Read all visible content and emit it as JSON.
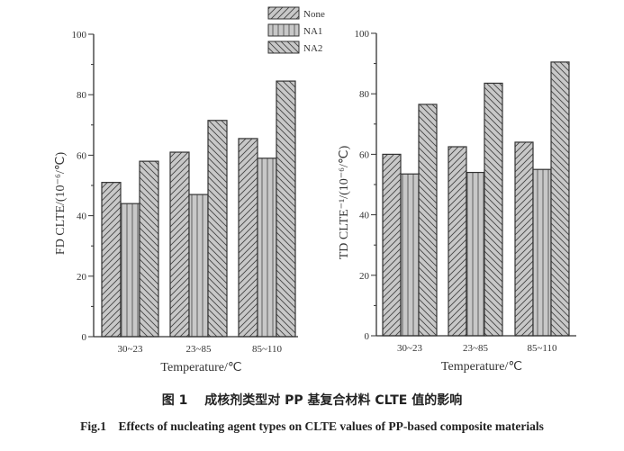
{
  "legend": {
    "items": [
      {
        "label": "None",
        "pattern": "diag-right"
      },
      {
        "label": "NA1",
        "pattern": "vertical"
      },
      {
        "label": "NA2",
        "pattern": "diag-left"
      }
    ]
  },
  "left_chart": {
    "ylabel": "FD CLTE/(10⁻⁶/℃)",
    "xlabel": "Temperature/℃",
    "yticks": [
      "0",
      "20",
      "40",
      "60",
      "80",
      "100"
    ]
  },
  "right_chart": {
    "ylabel": "TD CLTE⁻¹/(10⁻⁶/℃)",
    "xlabel": "Temperature/℃",
    "yticks": [
      "0",
      "20",
      "40",
      "60",
      "80",
      "100"
    ]
  },
  "caption": {
    "chinese": "图 1　 成核剂类型对 PP 基复合材料 CLTE 值的影响",
    "english": "Fig.1　Effects of nucleating agent types on CLTE values of PP-based composite materials"
  },
  "colors": {
    "bar_fill": "#c8c8c8",
    "stroke": "#333333"
  },
  "chart_data": [
    {
      "type": "bar",
      "title": "",
      "xlabel": "Temperature/℃",
      "ylabel": "FD CLTE/(10⁻⁶/℃)",
      "ylim": [
        0,
        100
      ],
      "categories": [
        "30~23",
        "23~85",
        "85~110"
      ],
      "series": [
        {
          "name": "None",
          "values": [
            51,
            61,
            65.5
          ]
        },
        {
          "name": "NA1",
          "values": [
            44,
            47,
            59
          ]
        },
        {
          "name": "NA2",
          "values": [
            58,
            71.5,
            84.5
          ]
        }
      ],
      "legend_position": "top-center",
      "grid": false
    },
    {
      "type": "bar",
      "title": "",
      "xlabel": "Temperature/℃",
      "ylabel": "TD CLTE⁻¹/(10⁻⁶/℃)",
      "ylim": [
        0,
        100
      ],
      "categories": [
        "30~23",
        "23~85",
        "85~110"
      ],
      "series": [
        {
          "name": "None",
          "values": [
            60,
            62.5,
            64
          ]
        },
        {
          "name": "NA1",
          "values": [
            53.5,
            54,
            55
          ]
        },
        {
          "name": "NA2",
          "values": [
            76.5,
            83.5,
            90.5
          ]
        }
      ],
      "legend_position": "top-center",
      "grid": false
    }
  ]
}
